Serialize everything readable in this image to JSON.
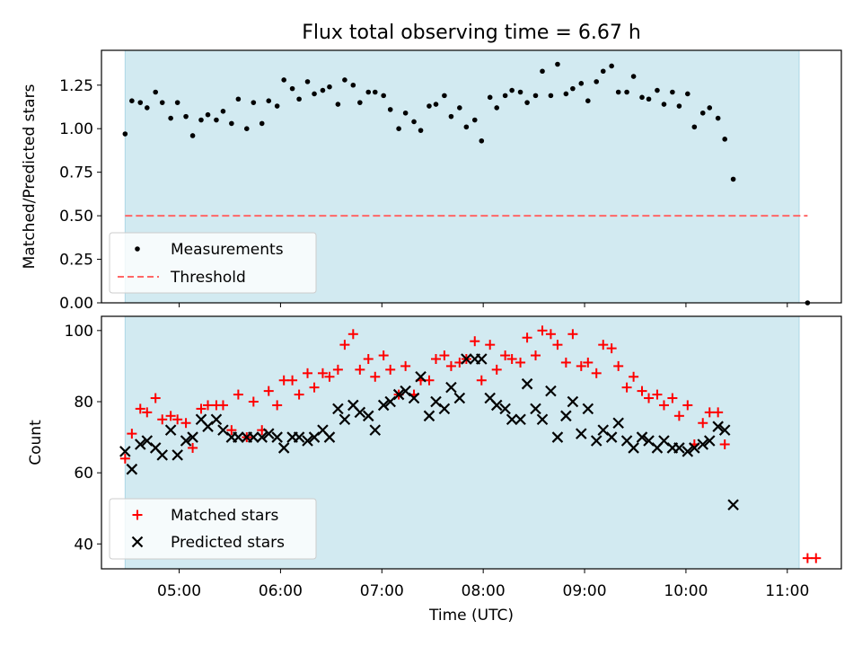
{
  "figure": {
    "title": "Flux total observing time = 6.67 h",
    "colors": {
      "shade": "#add8e6",
      "threshold": "#ff6666",
      "measure": "#000000",
      "matched": "#ff0000",
      "predicted": "#000000"
    }
  },
  "chart_data": [
    {
      "type": "scatter",
      "panel": "top",
      "ylabel": "Matched/Predicted stars",
      "ylim": [
        0.0,
        1.45
      ],
      "yticks": [
        0.0,
        0.25,
        0.5,
        0.75,
        1.0,
        1.25
      ],
      "ytick_labels": [
        "0.00",
        "0.25",
        "0.50",
        "0.75",
        "1.00",
        "1.25"
      ],
      "xlim": [
        "04:14",
        "11:32"
      ],
      "shaded_span": [
        "04:28",
        "11:07"
      ],
      "threshold": {
        "y": 0.5,
        "x": [
          "04:28",
          "11:12"
        ],
        "style": "dashed"
      },
      "legend": [
        "Measurements",
        "Threshold"
      ],
      "legend_position": "lower-left",
      "series": [
        {
          "name": "Measurements",
          "marker": "dot",
          "points": [
            [
              "04:28",
              0.97
            ],
            [
              "04:32",
              1.16
            ],
            [
              "04:37",
              1.15
            ],
            [
              "04:41",
              1.12
            ],
            [
              "04:46",
              1.21
            ],
            [
              "04:50",
              1.15
            ],
            [
              "04:55",
              1.06
            ],
            [
              "04:59",
              1.15
            ],
            [
              "05:04",
              1.07
            ],
            [
              "05:08",
              0.96
            ],
            [
              "05:13",
              1.05
            ],
            [
              "05:17",
              1.08
            ],
            [
              "05:22",
              1.05
            ],
            [
              "05:26",
              1.1
            ],
            [
              "05:31",
              1.03
            ],
            [
              "05:35",
              1.17
            ],
            [
              "05:40",
              1.0
            ],
            [
              "05:44",
              1.15
            ],
            [
              "05:49",
              1.03
            ],
            [
              "05:53",
              1.16
            ],
            [
              "05:58",
              1.13
            ],
            [
              "06:02",
              1.28
            ],
            [
              "06:07",
              1.23
            ],
            [
              "06:11",
              1.17
            ],
            [
              "06:16",
              1.27
            ],
            [
              "06:20",
              1.2
            ],
            [
              "06:25",
              1.22
            ],
            [
              "06:29",
              1.24
            ],
            [
              "06:34",
              1.14
            ],
            [
              "06:38",
              1.28
            ],
            [
              "06:43",
              1.25
            ],
            [
              "06:47",
              1.15
            ],
            [
              "06:52",
              1.21
            ],
            [
              "06:56",
              1.21
            ],
            [
              "07:01",
              1.19
            ],
            [
              "07:05",
              1.11
            ],
            [
              "07:10",
              1.0
            ],
            [
              "07:14",
              1.09
            ],
            [
              "07:19",
              1.04
            ],
            [
              "07:23",
              0.99
            ],
            [
              "07:28",
              1.13
            ],
            [
              "07:32",
              1.14
            ],
            [
              "07:37",
              1.19
            ],
            [
              "07:41",
              1.07
            ],
            [
              "07:46",
              1.12
            ],
            [
              "07:50",
              1.01
            ],
            [
              "07:55",
              1.05
            ],
            [
              "07:59",
              0.93
            ],
            [
              "08:04",
              1.18
            ],
            [
              "08:08",
              1.12
            ],
            [
              "08:13",
              1.19
            ],
            [
              "08:17",
              1.22
            ],
            [
              "08:22",
              1.21
            ],
            [
              "08:26",
              1.15
            ],
            [
              "08:31",
              1.19
            ],
            [
              "08:35",
              1.33
            ],
            [
              "08:40",
              1.19
            ],
            [
              "08:44",
              1.37
            ],
            [
              "08:49",
              1.2
            ],
            [
              "08:53",
              1.23
            ],
            [
              "08:58",
              1.26
            ],
            [
              "09:02",
              1.16
            ],
            [
              "09:07",
              1.27
            ],
            [
              "09:11",
              1.33
            ],
            [
              "09:16",
              1.36
            ],
            [
              "09:20",
              1.21
            ],
            [
              "09:25",
              1.21
            ],
            [
              "09:29",
              1.3
            ],
            [
              "09:34",
              1.18
            ],
            [
              "09:38",
              1.17
            ],
            [
              "09:43",
              1.22
            ],
            [
              "09:47",
              1.14
            ],
            [
              "09:52",
              1.21
            ],
            [
              "09:56",
              1.13
            ],
            [
              "10:01",
              1.2
            ],
            [
              "10:05",
              1.01
            ],
            [
              "10:10",
              1.09
            ],
            [
              "10:14",
              1.12
            ],
            [
              "10:19",
              1.06
            ],
            [
              "10:23",
              0.94
            ],
            [
              "10:28",
              0.71
            ],
            [
              "11:12",
              0.0
            ]
          ]
        }
      ]
    },
    {
      "type": "scatter",
      "panel": "bottom",
      "ylabel": "Count",
      "xlabel": "Time (UTC)",
      "ylim": [
        33,
        104
      ],
      "yticks": [
        40,
        60,
        80,
        100
      ],
      "xlim": [
        "04:14",
        "11:32"
      ],
      "xticks": [
        "05:00",
        "06:00",
        "07:00",
        "08:00",
        "09:00",
        "10:00",
        "11:00"
      ],
      "shaded_span": [
        "04:28",
        "11:07"
      ],
      "legend": [
        "Matched stars",
        "Predicted stars"
      ],
      "legend_position": "lower-left",
      "series": [
        {
          "name": "Matched stars",
          "marker": "plus",
          "points": [
            [
              "04:28",
              64
            ],
            [
              "04:32",
              71
            ],
            [
              "04:37",
              78
            ],
            [
              "04:41",
              77
            ],
            [
              "04:46",
              81
            ],
            [
              "04:50",
              75
            ],
            [
              "04:55",
              76
            ],
            [
              "04:59",
              75
            ],
            [
              "05:04",
              74
            ],
            [
              "05:08",
              67
            ],
            [
              "05:13",
              78
            ],
            [
              "05:17",
              79
            ],
            [
              "05:22",
              79
            ],
            [
              "05:26",
              79
            ],
            [
              "05:31",
              72
            ],
            [
              "05:35",
              82
            ],
            [
              "05:40",
              70
            ],
            [
              "05:44",
              80
            ],
            [
              "05:49",
              72
            ],
            [
              "05:53",
              83
            ],
            [
              "05:58",
              79
            ],
            [
              "06:02",
              86
            ],
            [
              "06:07",
              86
            ],
            [
              "06:11",
              82
            ],
            [
              "06:16",
              88
            ],
            [
              "06:20",
              84
            ],
            [
              "06:25",
              88
            ],
            [
              "06:29",
              87
            ],
            [
              "06:34",
              89
            ],
            [
              "06:38",
              96
            ],
            [
              "06:43",
              99
            ],
            [
              "06:47",
              89
            ],
            [
              "06:52",
              92
            ],
            [
              "06:56",
              87
            ],
            [
              "07:01",
              93
            ],
            [
              "07:05",
              89
            ],
            [
              "07:10",
              82
            ],
            [
              "07:14",
              90
            ],
            [
              "07:19",
              82
            ],
            [
              "07:23",
              86
            ],
            [
              "07:28",
              86
            ],
            [
              "07:32",
              92
            ],
            [
              "07:37",
              93
            ],
            [
              "07:41",
              90
            ],
            [
              "07:46",
              91
            ],
            [
              "07:50",
              92
            ],
            [
              "07:55",
              97
            ],
            [
              "07:59",
              86
            ],
            [
              "08:04",
              96
            ],
            [
              "08:08",
              89
            ],
            [
              "08:13",
              93
            ],
            [
              "08:17",
              92
            ],
            [
              "08:22",
              91
            ],
            [
              "08:26",
              98
            ],
            [
              "08:31",
              93
            ],
            [
              "08:35",
              100
            ],
            [
              "08:40",
              99
            ],
            [
              "08:44",
              96
            ],
            [
              "08:49",
              91
            ],
            [
              "08:53",
              99
            ],
            [
              "08:58",
              90
            ],
            [
              "09:02",
              91
            ],
            [
              "09:07",
              88
            ],
            [
              "09:11",
              96
            ],
            [
              "09:16",
              95
            ],
            [
              "09:20",
              90
            ],
            [
              "09:25",
              84
            ],
            [
              "09:29",
              87
            ],
            [
              "09:34",
              83
            ],
            [
              "09:38",
              81
            ],
            [
              "09:43",
              82
            ],
            [
              "09:47",
              79
            ],
            [
              "09:52",
              81
            ],
            [
              "09:56",
              76
            ],
            [
              "10:01",
              79
            ],
            [
              "10:05",
              68
            ],
            [
              "10:10",
              74
            ],
            [
              "10:14",
              77
            ],
            [
              "10:19",
              77
            ],
            [
              "10:23",
              68
            ],
            [
              "11:12",
              36
            ],
            [
              "11:17",
              36
            ]
          ]
        },
        {
          "name": "Predicted stars",
          "marker": "x",
          "points": [
            [
              "04:28",
              66
            ],
            [
              "04:32",
              61
            ],
            [
              "04:37",
              68
            ],
            [
              "04:41",
              69
            ],
            [
              "04:46",
              67
            ],
            [
              "04:50",
              65
            ],
            [
              "04:55",
              72
            ],
            [
              "04:59",
              65
            ],
            [
              "05:04",
              69
            ],
            [
              "05:08",
              70
            ],
            [
              "05:13",
              75
            ],
            [
              "05:17",
              73
            ],
            [
              "05:22",
              75
            ],
            [
              "05:26",
              72
            ],
            [
              "05:31",
              70
            ],
            [
              "05:35",
              70
            ],
            [
              "05:40",
              70
            ],
            [
              "05:44",
              70
            ],
            [
              "05:49",
              70
            ],
            [
              "05:53",
              71
            ],
            [
              "05:58",
              70
            ],
            [
              "06:02",
              67
            ],
            [
              "06:07",
              70
            ],
            [
              "06:11",
              70
            ],
            [
              "06:16",
              69
            ],
            [
              "06:20",
              70
            ],
            [
              "06:25",
              72
            ],
            [
              "06:29",
              70
            ],
            [
              "06:34",
              78
            ],
            [
              "06:38",
              75
            ],
            [
              "06:43",
              79
            ],
            [
              "06:47",
              77
            ],
            [
              "06:52",
              76
            ],
            [
              "06:56",
              72
            ],
            [
              "07:01",
              79
            ],
            [
              "07:05",
              80
            ],
            [
              "07:10",
              82
            ],
            [
              "07:14",
              83
            ],
            [
              "07:19",
              81
            ],
            [
              "07:23",
              87
            ],
            [
              "07:28",
              76
            ],
            [
              "07:32",
              80
            ],
            [
              "07:37",
              78
            ],
            [
              "07:41",
              84
            ],
            [
              "07:46",
              81
            ],
            [
              "07:50",
              92
            ],
            [
              "07:55",
              92
            ],
            [
              "07:59",
              92
            ],
            [
              "08:04",
              81
            ],
            [
              "08:08",
              79
            ],
            [
              "08:13",
              78
            ],
            [
              "08:17",
              75
            ],
            [
              "08:22",
              75
            ],
            [
              "08:26",
              85
            ],
            [
              "08:31",
              78
            ],
            [
              "08:35",
              75
            ],
            [
              "08:40",
              83
            ],
            [
              "08:44",
              70
            ],
            [
              "08:49",
              76
            ],
            [
              "08:53",
              80
            ],
            [
              "08:58",
              71
            ],
            [
              "09:02",
              78
            ],
            [
              "09:07",
              69
            ],
            [
              "09:11",
              72
            ],
            [
              "09:16",
              70
            ],
            [
              "09:20",
              74
            ],
            [
              "09:25",
              69
            ],
            [
              "09:29",
              67
            ],
            [
              "09:34",
              70
            ],
            [
              "09:38",
              69
            ],
            [
              "09:43",
              67
            ],
            [
              "09:47",
              69
            ],
            [
              "09:52",
              67
            ],
            [
              "09:56",
              67
            ],
            [
              "10:01",
              66
            ],
            [
              "10:05",
              67
            ],
            [
              "10:10",
              68
            ],
            [
              "10:14",
              69
            ],
            [
              "10:19",
              73
            ],
            [
              "10:23",
              72
            ],
            [
              "10:28",
              51
            ]
          ]
        }
      ]
    }
  ]
}
